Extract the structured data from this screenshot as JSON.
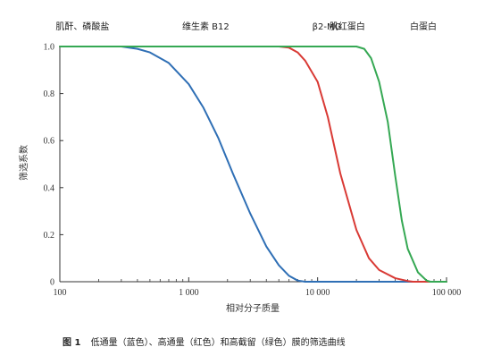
{
  "chart_data": {
    "type": "line",
    "xscale": "log",
    "xlim": [
      100,
      100000
    ],
    "ylim": [
      0,
      1.0
    ],
    "xlabel": "相对分子质量",
    "ylabel": "筛选系数",
    "x_ticks": [
      100,
      1000,
      10000,
      100000
    ],
    "x_tick_labels": [
      "100",
      "1 000",
      "10 000",
      "100 000"
    ],
    "y_ticks": [
      0,
      0.2,
      0.4,
      0.6,
      0.8,
      1.0
    ],
    "y_tick_labels": [
      "0",
      "0.2",
      "0.4",
      "0.6",
      "0.8",
      "1.0"
    ],
    "grid": false,
    "top_labels": [
      {
        "text": "肌酐、磷酸盐",
        "x": 150
      },
      {
        "text": "维生素 B12",
        "x": 1355
      },
      {
        "text": "β2-MG",
        "x": 11800
      },
      {
        "text": "肌红蛋白",
        "x": 17000
      },
      {
        "text": "白蛋白",
        "x": 66000
      }
    ],
    "series": [
      {
        "color": "#2f6fb5",
        "points": [
          [
            100,
            1.0
          ],
          [
            300,
            1.0
          ],
          [
            400,
            0.99
          ],
          [
            500,
            0.975
          ],
          [
            700,
            0.93
          ],
          [
            1000,
            0.84
          ],
          [
            1300,
            0.74
          ],
          [
            1700,
            0.61
          ],
          [
            2200,
            0.46
          ],
          [
            3000,
            0.29
          ],
          [
            4000,
            0.15
          ],
          [
            5000,
            0.07
          ],
          [
            6000,
            0.025
          ],
          [
            7000,
            0.005
          ],
          [
            8000,
            0.0
          ],
          [
            100000,
            0.0
          ]
        ]
      },
      {
        "color": "#d93a35",
        "points": [
          [
            100,
            1.0
          ],
          [
            5000,
            1.0
          ],
          [
            6000,
            0.995
          ],
          [
            7000,
            0.975
          ],
          [
            8000,
            0.94
          ],
          [
            10000,
            0.85
          ],
          [
            12000,
            0.7
          ],
          [
            15000,
            0.46
          ],
          [
            20000,
            0.22
          ],
          [
            25000,
            0.1
          ],
          [
            30000,
            0.05
          ],
          [
            40000,
            0.015
          ],
          [
            50000,
            0.003
          ],
          [
            55000,
            0.0
          ],
          [
            100000,
            0.0
          ]
        ]
      },
      {
        "color": "#35a853",
        "points": [
          [
            100,
            1.0
          ],
          [
            20000,
            1.0
          ],
          [
            23000,
            0.99
          ],
          [
            26000,
            0.95
          ],
          [
            30000,
            0.85
          ],
          [
            35000,
            0.68
          ],
          [
            40000,
            0.45
          ],
          [
            45000,
            0.26
          ],
          [
            50000,
            0.14
          ],
          [
            60000,
            0.04
          ],
          [
            70000,
            0.005
          ],
          [
            75000,
            0.0
          ],
          [
            100000,
            0.0
          ]
        ]
      }
    ]
  },
  "caption": {
    "figure": "图 1",
    "text": "低通量（蓝色）、高通量（红色）和高截留（绿色）膜的筛选曲线"
  }
}
